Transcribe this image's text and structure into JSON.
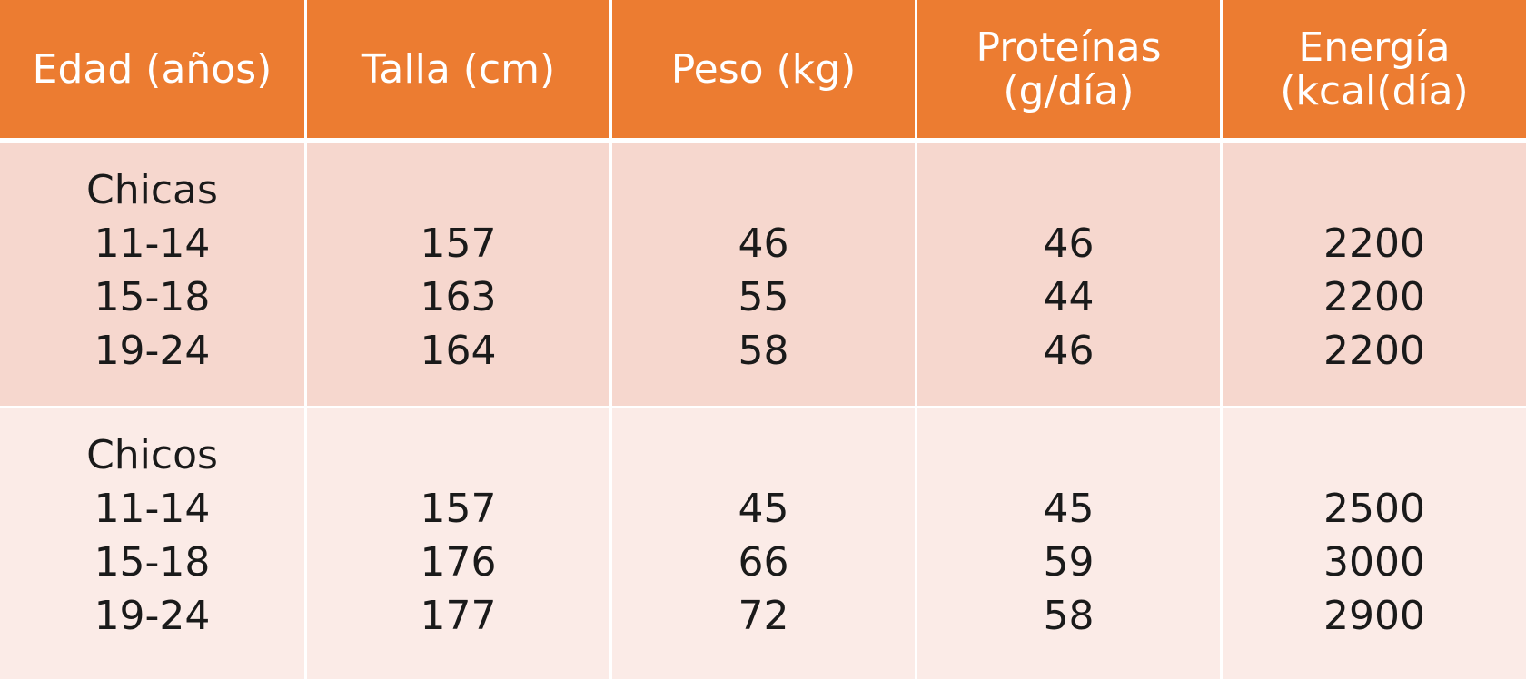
{
  "table": {
    "headers": [
      "Edad (años)",
      "Talla (cm)",
      "Peso (kg)",
      "Proteínas\n(g/día)",
      "Energía\n(kcal(día)"
    ],
    "groups": [
      {
        "label": "Chicas",
        "ages": [
          "11-14",
          "15-18",
          "19-24"
        ],
        "talla": [
          "157",
          "163",
          "164"
        ],
        "peso": [
          "46",
          "55",
          "58"
        ],
        "proteinas": [
          "46",
          "44",
          "46"
        ],
        "energia": [
          "2200",
          "2200",
          "2200"
        ]
      },
      {
        "label": "Chicos",
        "ages": [
          "11-14",
          "15-18",
          "19-24"
        ],
        "talla": [
          "157",
          "176",
          "177"
        ],
        "peso": [
          "45",
          "66",
          "72"
        ],
        "proteinas": [
          "45",
          "59",
          "58"
        ],
        "energia": [
          "2500",
          "3000",
          "2900"
        ]
      }
    ]
  },
  "colors": {
    "header_bg": "#ec7c31",
    "header_text": "#ffffff",
    "row1_bg": "#f6d7ce",
    "row2_bg": "#fbebe7",
    "body_text": "#1a1a1a"
  }
}
